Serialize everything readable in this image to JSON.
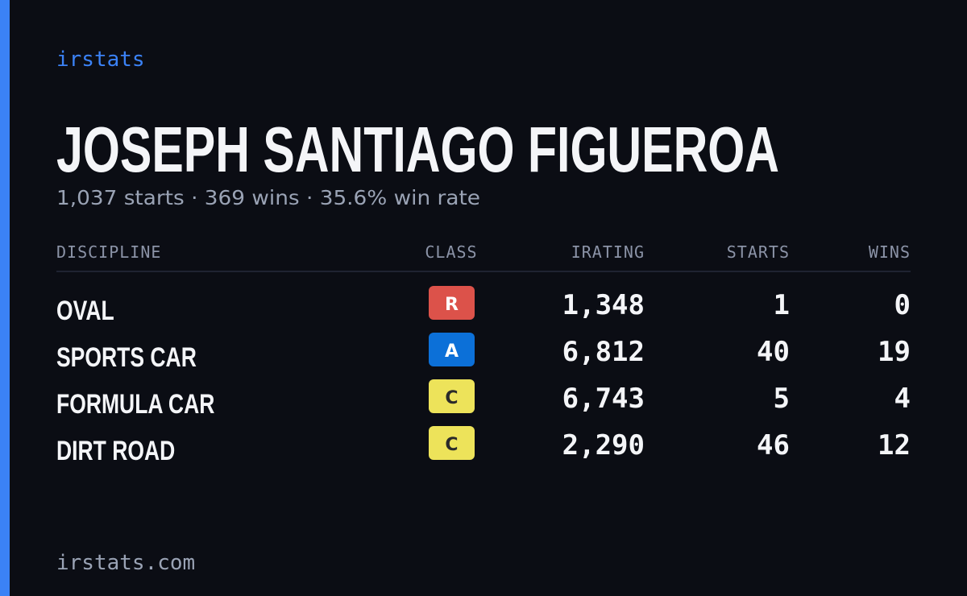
{
  "header": {
    "brand": "irstats",
    "title": "JOSEPH SANTIAGO FIGUEROA",
    "subtitle": "1,037 starts · 369 wins · 35.6% win rate"
  },
  "table": {
    "columns": [
      "DISCIPLINE",
      "CLASS",
      "IRATING",
      "STARTS",
      "WINS"
    ],
    "rows": [
      {
        "discipline": "OVAL",
        "class": "R",
        "class_color": "#dc524a",
        "class_text_color": "#ffffff",
        "irating": "1,348",
        "starts": "1",
        "wins": "0"
      },
      {
        "discipline": "SPORTS CAR",
        "class": "A",
        "class_color": "#0c70d8",
        "class_text_color": "#ffffff",
        "irating": "6,812",
        "starts": "40",
        "wins": "19"
      },
      {
        "discipline": "FORMULA CAR",
        "class": "C",
        "class_color": "#ede35a",
        "class_text_color": "#2a2a2a",
        "irating": "6,743",
        "starts": "5",
        "wins": "4"
      },
      {
        "discipline": "DIRT ROAD",
        "class": "C",
        "class_color": "#ede35a",
        "class_text_color": "#2a2a2a",
        "irating": "2,290",
        "starts": "46",
        "wins": "12"
      }
    ]
  },
  "footer": {
    "site": "irstats.com"
  }
}
